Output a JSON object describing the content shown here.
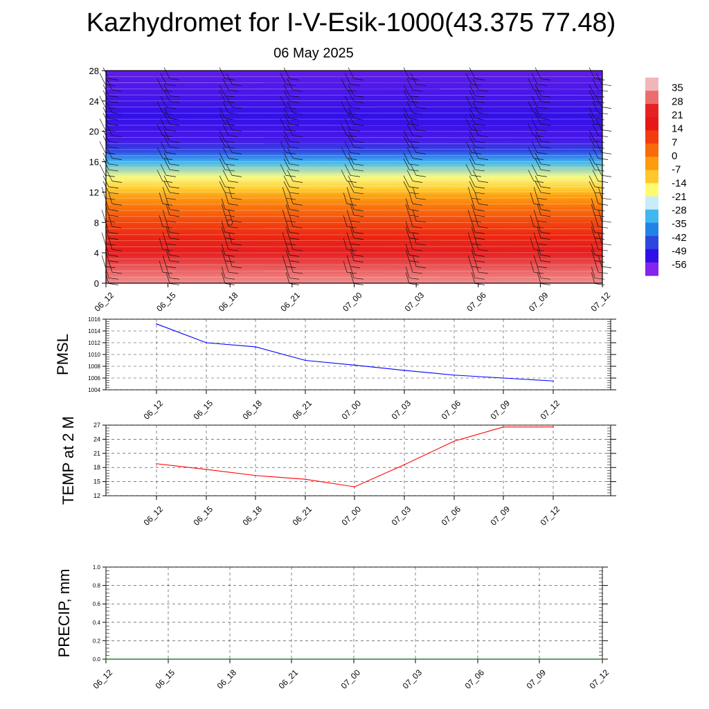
{
  "header": {
    "title": "Kazhydromet for I-V-Esik-1000(43.375 77.48)",
    "date": "06 May 2025"
  },
  "chart_data": [
    {
      "type": "heatmap",
      "panel": "cross-section",
      "title": "",
      "xlabel": "",
      "ylabel": "",
      "x_ticks": [
        "06_12",
        "06_15",
        "06_18",
        "06_21",
        "07_00",
        "07_03",
        "07_06",
        "07_09",
        "07_12"
      ],
      "y_ticks": [
        0,
        4,
        8,
        12,
        16,
        20,
        24,
        28
      ],
      "ylim": [
        0,
        28
      ],
      "colorbar_labels": [
        35,
        28,
        21,
        14,
        7,
        0,
        -7,
        -14,
        -21,
        -28,
        -35,
        -42,
        -49,
        -56
      ],
      "colorbar_colors": [
        "#f1b6b9",
        "#eb6e6e",
        "#e62124",
        "#e81616",
        "#f23c0e",
        "#f96a0a",
        "#fc9b0e",
        "#ffc82a",
        "#fffb70",
        "#c8ecfa",
        "#41b7f0",
        "#2183e6",
        "#2e45e0",
        "#3010e8",
        "#8224ec"
      ],
      "temperature_profile": [
        {
          "level": 0,
          "value": 33
        },
        {
          "level": 2,
          "value": 28
        },
        {
          "level": 4,
          "value": 20
        },
        {
          "level": 6,
          "value": 13
        },
        {
          "level": 8,
          "value": 7
        },
        {
          "level": 10,
          "value": 0
        },
        {
          "level": 11.5,
          "value": -7
        },
        {
          "level": 12.5,
          "value": -14
        },
        {
          "level": 14,
          "value": -21
        },
        {
          "level": 16,
          "value": -35
        },
        {
          "level": 17.5,
          "value": -49
        },
        {
          "level": 19,
          "value": -58
        },
        {
          "level": 22,
          "value": -56
        },
        {
          "level": 28,
          "value": -60
        }
      ],
      "wind_barbs": true
    },
    {
      "type": "line",
      "panel": "pmsl",
      "title": "",
      "ylabel": "PMSL",
      "ylim": [
        1004,
        1016
      ],
      "y_ticks": [
        1004,
        1006,
        1008,
        1010,
        1012,
        1014,
        1016
      ],
      "categories": [
        "06_12",
        "06_15",
        "06_18",
        "06_21",
        "07_00",
        "07_03",
        "07_06",
        "07_09",
        "07_12"
      ],
      "series": [
        {
          "values": [
            1015.2,
            1012.0,
            1011.3,
            1009.0,
            1008.2,
            1007.3,
            1006.5,
            1006.0,
            1005.5
          ],
          "color": "#0000ff"
        }
      ]
    },
    {
      "type": "line",
      "panel": "temp2m",
      "title": "",
      "ylabel": "TEMP at 2 M",
      "ylim": [
        12,
        27
      ],
      "y_ticks": [
        12,
        15,
        18,
        21,
        24,
        27
      ],
      "categories": [
        "06_12",
        "06_15",
        "06_18",
        "06_21",
        "07_00",
        "07_03",
        "07_06",
        "07_09",
        "07_12"
      ],
      "series": [
        {
          "values": [
            18.8,
            17.6,
            16.3,
            15.5,
            13.9,
            18.6,
            23.6,
            26.6,
            26.6
          ],
          "color": "#ff0000"
        }
      ]
    },
    {
      "type": "line",
      "panel": "precip",
      "title": "",
      "ylabel": "PRECIP, mm",
      "ylim": [
        0,
        1.0
      ],
      "y_ticks": [
        0.0,
        0.2,
        0.4,
        0.6,
        0.8,
        1.0
      ],
      "y_tick_labels": [
        "0.0",
        "0.2",
        "0.4",
        "0.6",
        "0.8",
        "1.0"
      ],
      "categories": [
        "06_12",
        "06_15",
        "06_18",
        "06_21",
        "07_00",
        "07_03",
        "07_06",
        "07_09",
        "07_12"
      ],
      "series": [
        {
          "values": [
            0,
            0,
            0,
            0,
            0,
            0,
            0,
            0,
            0
          ],
          "color": "#006400"
        }
      ]
    }
  ]
}
